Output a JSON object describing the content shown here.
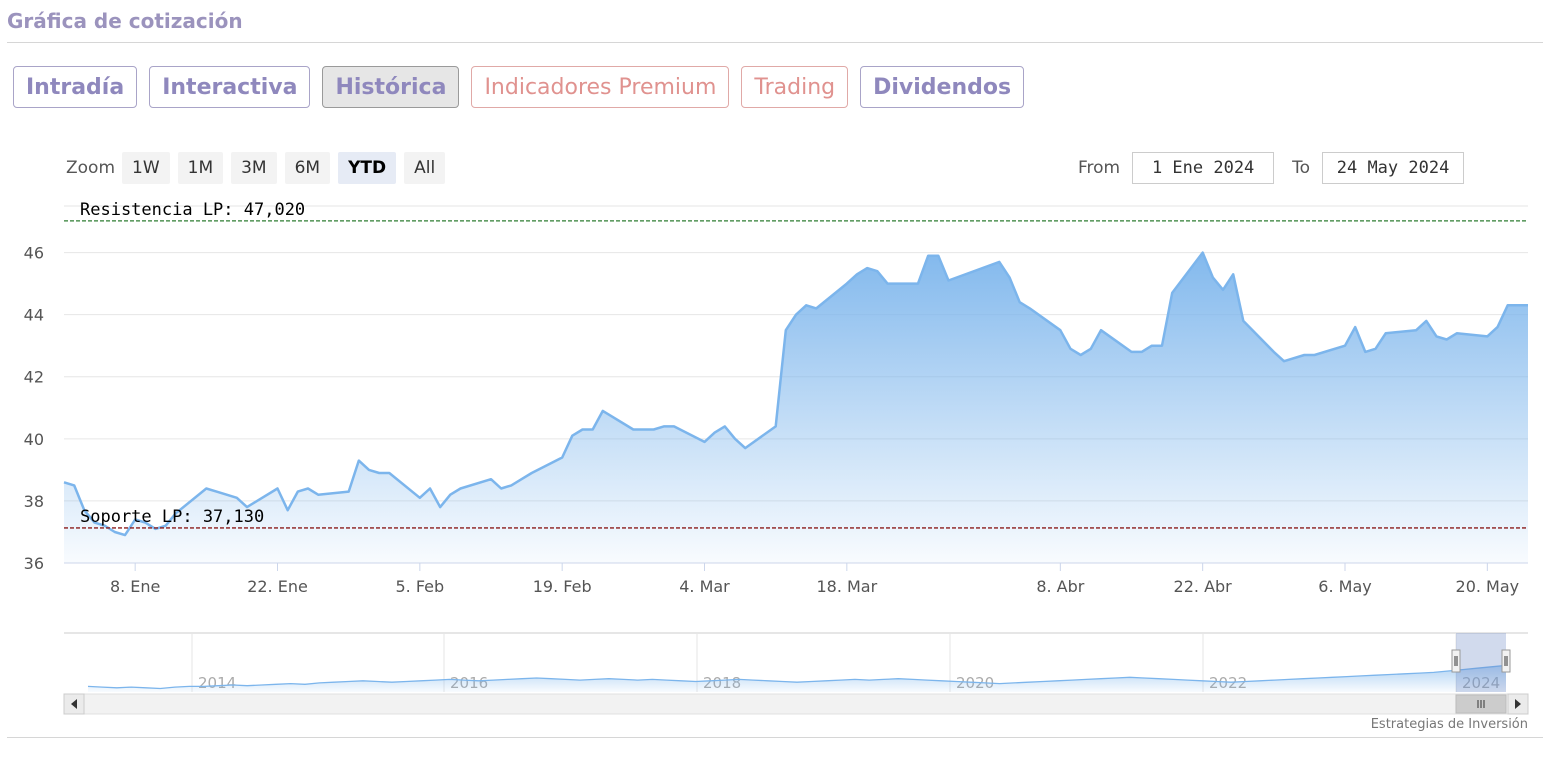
{
  "page": {
    "title": "Gráfica de cotización"
  },
  "tabs": [
    {
      "label": "Intradía",
      "active": false,
      "style": "normal"
    },
    {
      "label": "Interactiva",
      "active": false,
      "style": "normal"
    },
    {
      "label": "Histórica",
      "active": true,
      "style": "normal"
    },
    {
      "label": "Indicadores Premium",
      "active": false,
      "style": "premium"
    },
    {
      "label": "Trading",
      "active": false,
      "style": "premium"
    },
    {
      "label": "Dividendos",
      "active": false,
      "style": "normal"
    }
  ],
  "zoom": {
    "label": "Zoom",
    "buttons": [
      "1W",
      "1M",
      "3M",
      "6M",
      "YTD",
      "All"
    ],
    "selected": "YTD"
  },
  "range": {
    "from_label": "From",
    "from_value": "1 Ene 2024",
    "to_label": "To",
    "to_value": "24 May 2024"
  },
  "credit": "Estrategias de Inversión",
  "colors": {
    "series": "#7cb5ec",
    "resistance": "#2e7d32",
    "support": "#8b1a1a",
    "tab": "#8f88bd",
    "premium": "#e0928f"
  },
  "chart_data": {
    "type": "area",
    "x_start": "2024-01-01",
    "x_end": "2024-05-24",
    "ylim": [
      36,
      47.5
    ],
    "yticks": [
      36,
      38,
      40,
      42,
      44,
      46
    ],
    "xticks": [
      {
        "date": "2024-01-08",
        "label": "8. Ene"
      },
      {
        "date": "2024-01-22",
        "label": "22. Ene"
      },
      {
        "date": "2024-02-05",
        "label": "5. Feb"
      },
      {
        "date": "2024-02-19",
        "label": "19. Feb"
      },
      {
        "date": "2024-03-04",
        "label": "4. Mar"
      },
      {
        "date": "2024-03-18",
        "label": "18. Mar"
      },
      {
        "date": "2024-04-08",
        "label": "8. Abr"
      },
      {
        "date": "2024-04-22",
        "label": "22. Abr"
      },
      {
        "date": "2024-05-06",
        "label": "6. May"
      },
      {
        "date": "2024-05-20",
        "label": "20. May"
      }
    ],
    "plot_lines": [
      {
        "label": "Resistencia LP: 47,020",
        "value": 47.02,
        "color": "#2e7d32"
      },
      {
        "label": "Soporte LP: 37,130",
        "value": 37.13,
        "color": "#8b1a1a"
      }
    ],
    "series": [
      {
        "x": [
          "2024-01-01",
          "2024-01-02",
          "2024-01-03",
          "2024-01-04",
          "2024-01-05",
          "2024-01-06",
          "2024-01-07",
          "2024-01-08",
          "2024-01-09",
          "2024-01-10",
          "2024-01-11",
          "2024-01-12",
          "2024-01-15",
          "2024-01-16",
          "2024-01-17",
          "2024-01-18",
          "2024-01-19",
          "2024-01-22",
          "2024-01-23",
          "2024-01-24",
          "2024-01-25",
          "2024-01-26",
          "2024-01-29",
          "2024-01-30",
          "2024-01-31",
          "2024-02-01",
          "2024-02-02",
          "2024-02-05",
          "2024-02-06",
          "2024-02-07",
          "2024-02-08",
          "2024-02-09",
          "2024-02-12",
          "2024-02-13",
          "2024-02-14",
          "2024-02-15",
          "2024-02-16",
          "2024-02-19",
          "2024-02-20",
          "2024-02-21",
          "2024-02-22",
          "2024-02-23",
          "2024-02-26",
          "2024-02-27",
          "2024-02-28",
          "2024-02-29",
          "2024-03-01",
          "2024-03-04",
          "2024-03-05",
          "2024-03-06",
          "2024-03-07",
          "2024-03-08",
          "2024-03-11",
          "2024-03-12",
          "2024-03-13",
          "2024-03-14",
          "2024-03-15",
          "2024-03-18",
          "2024-03-19",
          "2024-03-20",
          "2024-03-21",
          "2024-03-22",
          "2024-03-25",
          "2024-03-26",
          "2024-03-27",
          "2024-03-28",
          "2024-04-02",
          "2024-04-03",
          "2024-04-04",
          "2024-04-05",
          "2024-04-08",
          "2024-04-09",
          "2024-04-10",
          "2024-04-11",
          "2024-04-12",
          "2024-04-15",
          "2024-04-16",
          "2024-04-17",
          "2024-04-18",
          "2024-04-19",
          "2024-04-22",
          "2024-04-23",
          "2024-04-24",
          "2024-04-25",
          "2024-04-26",
          "2024-04-29",
          "2024-04-30",
          "2024-05-02",
          "2024-05-03",
          "2024-05-06",
          "2024-05-07",
          "2024-05-08",
          "2024-05-09",
          "2024-05-10",
          "2024-05-13",
          "2024-05-14",
          "2024-05-15",
          "2024-05-16",
          "2024-05-17",
          "2024-05-20",
          "2024-05-21",
          "2024-05-22",
          "2024-05-23",
          "2024-05-24"
        ],
        "values": [
          38.6,
          38.5,
          37.7,
          37.3,
          37.2,
          37.0,
          36.9,
          37.4,
          37.3,
          37.1,
          37.2,
          37.6,
          38.4,
          38.3,
          38.2,
          38.1,
          37.8,
          38.4,
          37.7,
          38.3,
          38.4,
          38.2,
          38.3,
          39.3,
          39.0,
          38.9,
          38.9,
          38.1,
          38.4,
          37.8,
          38.2,
          38.4,
          38.7,
          38.4,
          38.5,
          38.7,
          38.9,
          39.4,
          40.1,
          40.3,
          40.3,
          40.9,
          40.3,
          40.3,
          40.3,
          40.4,
          40.4,
          39.9,
          40.2,
          40.4,
          40.0,
          39.7,
          40.4,
          43.5,
          44.0,
          44.3,
          44.2,
          45.0,
          45.3,
          45.5,
          45.4,
          45.0,
          45.0,
          45.9,
          45.9,
          45.1,
          45.7,
          45.2,
          44.4,
          44.2,
          43.5,
          42.9,
          42.7,
          42.9,
          43.5,
          42.8,
          42.8,
          43.0,
          43.0,
          44.7,
          46.0,
          45.2,
          44.8,
          45.3,
          43.8,
          42.8,
          42.5,
          42.7,
          42.7,
          43.0,
          43.6,
          42.8,
          42.9,
          43.4,
          43.5,
          43.8,
          43.3,
          43.2,
          43.4,
          43.3,
          43.6,
          44.3,
          44.3,
          44.3
        ]
      }
    ],
    "navigator": {
      "years": [
        "2014",
        "2016",
        "2018",
        "2020",
        "2022",
        "2024"
      ]
    }
  }
}
